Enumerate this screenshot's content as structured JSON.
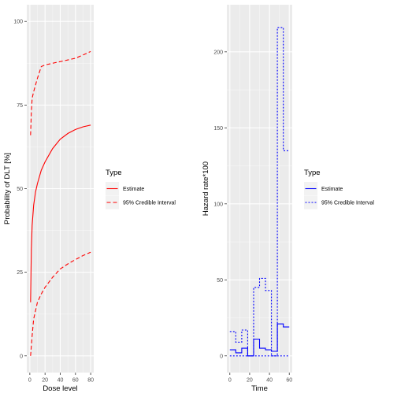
{
  "chart_data": [
    {
      "type": "line",
      "xlabel": "Dose level",
      "ylabel": "Probability of DLT [%]",
      "xlim": [
        -4,
        84
      ],
      "ylim": [
        -5,
        105
      ],
      "x_ticks": [
        0,
        20,
        40,
        60,
        80
      ],
      "y_ticks": [
        0,
        25,
        50,
        75,
        100
      ],
      "x_tick_labels": [
        "0",
        "20",
        "40",
        "60",
        "80"
      ],
      "y_tick_labels": [
        "0",
        "25",
        "50",
        "75",
        "100"
      ],
      "grid": true,
      "legend": {
        "title": "Type",
        "position": "right",
        "entries": [
          {
            "label": "Estimate",
            "style": "solid"
          },
          {
            "label": "95% Credible Interval",
            "style": "dashed"
          }
        ]
      },
      "series": [
        {
          "name": "Estimate",
          "color": "#ff0000",
          "style": "solid",
          "x": [
            1,
            2,
            3,
            5,
            7.5,
            10,
            15,
            20,
            30,
            40,
            50,
            60,
            70,
            80
          ],
          "y": [
            16,
            32,
            39,
            45,
            49,
            51.5,
            55.5,
            58,
            62,
            64.8,
            66.5,
            67.7,
            68.5,
            69
          ]
        },
        {
          "name": "95% Credible Interval",
          "color": "#ff0000",
          "style": "dashed",
          "x": [
            1,
            3,
            5,
            10,
            15,
            20,
            30,
            40,
            50,
            60,
            70,
            80
          ],
          "y": [
            0,
            6,
            11,
            16,
            18.5,
            20.5,
            23.5,
            26,
            27.5,
            28.8,
            30,
            31
          ]
        },
        {
          "name": "95% Credible Interval",
          "color": "#ff0000",
          "style": "dashed",
          "x": [
            1,
            2,
            3,
            5,
            10,
            15,
            20,
            30,
            40,
            50,
            60,
            70,
            80
          ],
          "y": [
            66,
            73,
            77,
            79,
            83,
            86.5,
            87,
            87.5,
            88,
            88.5,
            89,
            90,
            91
          ]
        }
      ]
    },
    {
      "type": "line",
      "xlabel": "Time",
      "ylabel": "Hazard rate*100",
      "xlim": [
        -3,
        63
      ],
      "ylim": [
        -11,
        231
      ],
      "x_ticks": [
        0,
        20,
        40,
        60
      ],
      "y_ticks": [
        0,
        50,
        100,
        150,
        200
      ],
      "x_tick_labels": [
        "0",
        "20",
        "40",
        "60"
      ],
      "y_tick_labels": [
        "0",
        "50",
        "100",
        "150",
        "200"
      ],
      "grid": true,
      "legend": {
        "title": "Type",
        "position": "right",
        "entries": [
          {
            "label": "Estimate",
            "style": "solid"
          },
          {
            "label": "95% Credible Interval",
            "style": "dotted"
          }
        ]
      },
      "series": [
        {
          "name": "Estimate",
          "color": "#0000ff",
          "style": "solid",
          "step_edges": [
            0,
            6,
            12,
            18,
            24,
            30,
            36,
            42,
            48,
            54,
            60
          ],
          "values": [
            4,
            2,
            5,
            0,
            11,
            5,
            4,
            3,
            21,
            19
          ]
        },
        {
          "name": "95% Credible Interval",
          "color": "#0000ff",
          "style": "dotted",
          "step_edges": [
            0,
            6,
            12,
            18,
            24,
            30,
            36,
            42,
            48,
            54,
            60
          ],
          "values": [
            16,
            9,
            17,
            0,
            45,
            51,
            43,
            0,
            216,
            135
          ]
        },
        {
          "name": "95% Credible Interval",
          "color": "#0000ff",
          "style": "dotted",
          "step_edges": [
            0,
            6,
            12,
            18,
            24,
            30,
            36,
            42,
            48,
            54,
            60
          ],
          "values": [
            0,
            0,
            0,
            0,
            0,
            0,
            0,
            0,
            0,
            0
          ]
        }
      ]
    }
  ]
}
